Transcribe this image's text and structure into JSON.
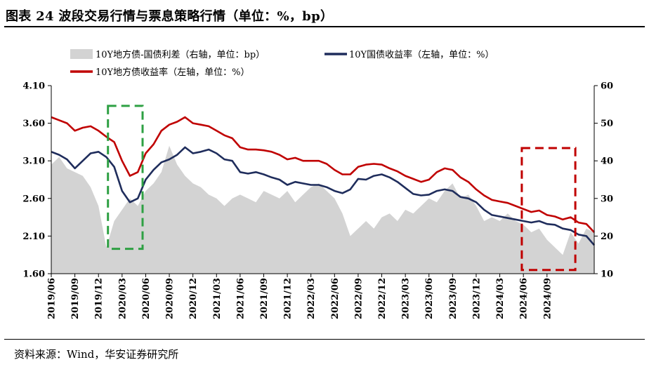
{
  "title": "图表 24 波段交易行情与票息策略行情（单位：%，bp）",
  "source": "资料来源：Wind，华安证券研究所",
  "colors": {
    "spread_fill": "#d3d3d3",
    "treasury_line": "#1f2d5c",
    "local_line": "#c00000",
    "green_box": "#2ea043",
    "red_box": "#c00000"
  },
  "chart_data": {
    "type": "line+area",
    "title": "",
    "x_tick_labels": [
      "2019/06",
      "2019/09",
      "2019/12",
      "2020/03",
      "2020/06",
      "2020/09",
      "2020/12",
      "2021/03",
      "2021/06",
      "2021/09",
      "2021/12",
      "2022/03",
      "2022/06",
      "2022/09",
      "2022/12",
      "2023/03",
      "2023/06",
      "2023/09",
      "2023/12",
      "2024/03",
      "2024/06",
      "2024/09"
    ],
    "y_left": {
      "min": 1.6,
      "max": 4.1,
      "ticks": [
        "4.10",
        "3.60",
        "3.10",
        "2.60",
        "2.10",
        "1.60"
      ]
    },
    "y_right": {
      "min": 10,
      "max": 60,
      "ticks": [
        "60",
        "50",
        "40",
        "30",
        "20",
        "10"
      ]
    },
    "x_range_months": [
      0,
      69
    ],
    "series": [
      {
        "name": "10Y地方债-国债利差（右轴，单位：bp）",
        "axis": "right",
        "type": "area",
        "points": [
          [
            0,
            39
          ],
          [
            1,
            41
          ],
          [
            2,
            38
          ],
          [
            3,
            37
          ],
          [
            4,
            36
          ],
          [
            5,
            33
          ],
          [
            6,
            28
          ],
          [
            7,
            17
          ],
          [
            8,
            24
          ],
          [
            9,
            27
          ],
          [
            10,
            30
          ],
          [
            11,
            28
          ],
          [
            12,
            32
          ],
          [
            13,
            34
          ],
          [
            14,
            37
          ],
          [
            15,
            44
          ],
          [
            16,
            39
          ],
          [
            17,
            36
          ],
          [
            18,
            34
          ],
          [
            19,
            33
          ],
          [
            20,
            31
          ],
          [
            21,
            30
          ],
          [
            22,
            28
          ],
          [
            23,
            30
          ],
          [
            24,
            31
          ],
          [
            25,
            30
          ],
          [
            26,
            29
          ],
          [
            27,
            32
          ],
          [
            28,
            31
          ],
          [
            29,
            30
          ],
          [
            30,
            32
          ],
          [
            31,
            29
          ],
          [
            32,
            31
          ],
          [
            33,
            33
          ],
          [
            34,
            34
          ],
          [
            35,
            32
          ],
          [
            36,
            30
          ],
          [
            37,
            26
          ],
          [
            38,
            20
          ],
          [
            39,
            22
          ],
          [
            40,
            24
          ],
          [
            41,
            22
          ],
          [
            42,
            25
          ],
          [
            43,
            26
          ],
          [
            44,
            24
          ],
          [
            45,
            27
          ],
          [
            46,
            26
          ],
          [
            47,
            28
          ],
          [
            48,
            30
          ],
          [
            49,
            29
          ],
          [
            50,
            32
          ],
          [
            51,
            34
          ],
          [
            52,
            30
          ],
          [
            53,
            31
          ],
          [
            54,
            28
          ],
          [
            55,
            24
          ],
          [
            56,
            25
          ],
          [
            57,
            24
          ],
          [
            58,
            26
          ],
          [
            59,
            24
          ],
          [
            60,
            23
          ],
          [
            61,
            21
          ],
          [
            62,
            22
          ],
          [
            63,
            19
          ],
          [
            64,
            17
          ],
          [
            65,
            15
          ],
          [
            66,
            21
          ],
          [
            67,
            18
          ],
          [
            68,
            22
          ],
          [
            69,
            21
          ]
        ]
      },
      {
        "name": "10Y国债收益率（左轴，单位：%）",
        "axis": "left",
        "type": "line",
        "points": [
          [
            0,
            3.22
          ],
          [
            1,
            3.18
          ],
          [
            2,
            3.12
          ],
          [
            3,
            3.0
          ],
          [
            4,
            3.1
          ],
          [
            5,
            3.2
          ],
          [
            6,
            3.22
          ],
          [
            7,
            3.15
          ],
          [
            8,
            3.02
          ],
          [
            9,
            2.7
          ],
          [
            10,
            2.55
          ],
          [
            11,
            2.6
          ],
          [
            12,
            2.85
          ],
          [
            13,
            2.98
          ],
          [
            14,
            3.08
          ],
          [
            15,
            3.12
          ],
          [
            16,
            3.18
          ],
          [
            17,
            3.28
          ],
          [
            18,
            3.2
          ],
          [
            19,
            3.22
          ],
          [
            20,
            3.25
          ],
          [
            21,
            3.2
          ],
          [
            22,
            3.12
          ],
          [
            23,
            3.1
          ],
          [
            24,
            2.95
          ],
          [
            25,
            2.93
          ],
          [
            26,
            2.95
          ],
          [
            27,
            2.92
          ],
          [
            28,
            2.88
          ],
          [
            29,
            2.85
          ],
          [
            30,
            2.78
          ],
          [
            31,
            2.82
          ],
          [
            32,
            2.8
          ],
          [
            33,
            2.78
          ],
          [
            34,
            2.78
          ],
          [
            35,
            2.75
          ],
          [
            36,
            2.7
          ],
          [
            37,
            2.67
          ],
          [
            38,
            2.72
          ],
          [
            39,
            2.86
          ],
          [
            40,
            2.85
          ],
          [
            41,
            2.9
          ],
          [
            42,
            2.92
          ],
          [
            43,
            2.88
          ],
          [
            44,
            2.82
          ],
          [
            45,
            2.74
          ],
          [
            46,
            2.66
          ],
          [
            47,
            2.64
          ],
          [
            48,
            2.65
          ],
          [
            49,
            2.7
          ],
          [
            50,
            2.72
          ],
          [
            51,
            2.7
          ],
          [
            52,
            2.62
          ],
          [
            53,
            2.6
          ],
          [
            54,
            2.55
          ],
          [
            55,
            2.45
          ],
          [
            56,
            2.38
          ],
          [
            57,
            2.36
          ],
          [
            58,
            2.34
          ],
          [
            59,
            2.32
          ],
          [
            60,
            2.3
          ],
          [
            61,
            2.28
          ],
          [
            62,
            2.3
          ],
          [
            63,
            2.26
          ],
          [
            64,
            2.25
          ],
          [
            65,
            2.2
          ],
          [
            66,
            2.18
          ],
          [
            67,
            2.12
          ],
          [
            68,
            2.1
          ],
          [
            69,
            1.98
          ]
        ]
      },
      {
        "name": "10Y地方债收益率（左轴，单位：%）",
        "axis": "left",
        "type": "line",
        "points": [
          [
            0,
            3.68
          ],
          [
            1,
            3.64
          ],
          [
            2,
            3.6
          ],
          [
            3,
            3.5
          ],
          [
            4,
            3.54
          ],
          [
            5,
            3.56
          ],
          [
            6,
            3.5
          ],
          [
            7,
            3.42
          ],
          [
            8,
            3.35
          ],
          [
            9,
            3.1
          ],
          [
            10,
            2.9
          ],
          [
            11,
            2.95
          ],
          [
            12,
            3.2
          ],
          [
            13,
            3.32
          ],
          [
            14,
            3.5
          ],
          [
            15,
            3.58
          ],
          [
            16,
            3.62
          ],
          [
            17,
            3.68
          ],
          [
            18,
            3.6
          ],
          [
            19,
            3.58
          ],
          [
            20,
            3.56
          ],
          [
            21,
            3.5
          ],
          [
            22,
            3.44
          ],
          [
            23,
            3.4
          ],
          [
            24,
            3.28
          ],
          [
            25,
            3.25
          ],
          [
            26,
            3.25
          ],
          [
            27,
            3.24
          ],
          [
            28,
            3.22
          ],
          [
            29,
            3.18
          ],
          [
            30,
            3.12
          ],
          [
            31,
            3.14
          ],
          [
            32,
            3.1
          ],
          [
            33,
            3.1
          ],
          [
            34,
            3.1
          ],
          [
            35,
            3.06
          ],
          [
            36,
            2.98
          ],
          [
            37,
            2.92
          ],
          [
            38,
            2.92
          ],
          [
            39,
            3.02
          ],
          [
            40,
            3.05
          ],
          [
            41,
            3.06
          ],
          [
            42,
            3.05
          ],
          [
            43,
            3.0
          ],
          [
            44,
            2.96
          ],
          [
            45,
            2.9
          ],
          [
            46,
            2.86
          ],
          [
            47,
            2.82
          ],
          [
            48,
            2.85
          ],
          [
            49,
            2.95
          ],
          [
            50,
            3.0
          ],
          [
            51,
            2.98
          ],
          [
            52,
            2.88
          ],
          [
            53,
            2.82
          ],
          [
            54,
            2.72
          ],
          [
            55,
            2.64
          ],
          [
            56,
            2.58
          ],
          [
            57,
            2.56
          ],
          [
            58,
            2.54
          ],
          [
            59,
            2.5
          ],
          [
            60,
            2.46
          ],
          [
            61,
            2.42
          ],
          [
            62,
            2.44
          ],
          [
            63,
            2.38
          ],
          [
            64,
            2.36
          ],
          [
            65,
            2.32
          ],
          [
            66,
            2.35
          ],
          [
            67,
            2.28
          ],
          [
            68,
            2.26
          ],
          [
            69,
            2.15
          ]
        ]
      }
    ],
    "annotations": [
      {
        "type": "dashed-box",
        "color": "green",
        "x_from": 7.2,
        "x_to": 11.6,
        "y_from": 1.93,
        "y_to": 3.83,
        "axis": "left"
      },
      {
        "type": "dashed-box",
        "color": "red",
        "x_from": 59.8,
        "x_to": 66.6,
        "y_from": 1.65,
        "y_to": 3.27,
        "axis": "left"
      }
    ],
    "legend": [
      "10Y地方债-国债利差（右轴，单位：bp）",
      "10Y国债收益率（左轴，单位：%）",
      "10Y地方债收益率（左轴，单位：%）"
    ],
    "legend_position": "top-left"
  }
}
